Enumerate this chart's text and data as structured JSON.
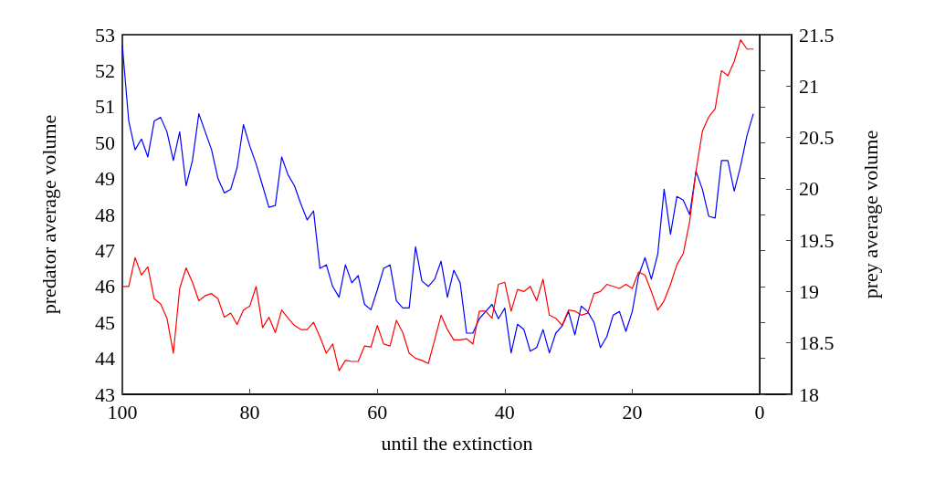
{
  "chart_data": {
    "type": "line",
    "xlabel": "until the extinction",
    "ylabel": "predator average volume",
    "y2label": "prey average volume",
    "x": [
      100,
      99,
      98,
      97,
      96,
      95,
      94,
      93,
      92,
      91,
      90,
      89,
      88,
      87,
      86,
      85,
      84,
      83,
      82,
      81,
      80,
      79,
      78,
      77,
      76,
      75,
      74,
      73,
      72,
      71,
      70,
      69,
      68,
      67,
      66,
      65,
      64,
      63,
      62,
      61,
      60,
      59,
      58,
      57,
      56,
      55,
      54,
      53,
      52,
      51,
      50,
      49,
      48,
      47,
      46,
      45,
      44,
      43,
      42,
      41,
      40,
      39,
      38,
      37,
      36,
      35,
      34,
      33,
      32,
      31,
      30,
      29,
      28,
      27,
      26,
      25,
      24,
      23,
      22,
      21,
      20,
      19,
      18,
      17,
      16,
      15,
      14,
      13,
      12,
      11,
      10,
      9,
      8,
      7,
      6,
      5,
      4,
      3,
      2,
      1
    ],
    "series": [
      {
        "color": "#0000ff",
        "values": [
          52.7,
          50.6,
          49.8,
          50.1,
          49.6,
          50.6,
          50.7,
          50.3,
          49.5,
          50.3,
          48.8,
          49.5,
          50.8,
          50.3,
          49.8,
          49.0,
          48.6,
          48.7,
          49.3,
          50.5,
          49.9,
          49.4,
          48.8,
          48.2,
          48.25,
          49.6,
          49.1,
          48.8,
          48.3,
          47.85,
          48.1,
          46.5,
          46.6,
          46.0,
          45.7,
          46.6,
          46.1,
          46.3,
          45.5,
          45.35,
          45.9,
          46.5,
          46.6,
          45.6,
          45.4,
          45.4,
          47.1,
          46.15,
          46.0,
          46.2,
          46.7,
          45.7,
          46.45,
          46.1,
          44.7,
          44.7,
          45.1,
          45.3,
          45.5,
          45.1,
          45.4,
          44.15,
          44.95,
          44.8,
          44.2,
          44.3,
          44.8,
          44.15,
          44.7,
          44.9,
          45.3,
          44.65,
          45.45,
          45.3,
          45.0,
          44.3,
          44.6,
          45.2,
          45.3,
          44.75,
          45.3,
          46.3,
          46.8,
          46.2,
          46.9,
          48.7,
          47.45,
          48.5,
          48.4,
          48.0,
          49.2,
          48.7,
          47.95,
          47.9,
          49.5,
          49.5,
          48.65,
          49.35,
          50.2,
          50.8
        ]
      },
      {
        "color": "#ff0000",
        "axis": "y2",
        "values": [
          19.05,
          19.05,
          19.33,
          19.16,
          19.24,
          18.93,
          18.88,
          18.74,
          18.4,
          19.03,
          19.23,
          19.09,
          18.91,
          18.96,
          18.98,
          18.93,
          18.75,
          18.79,
          18.68,
          18.82,
          18.86,
          19.05,
          18.65,
          18.75,
          18.6,
          18.82,
          18.74,
          18.67,
          18.63,
          18.63,
          18.7,
          18.56,
          18.4,
          18.49,
          18.23,
          18.33,
          18.32,
          18.32,
          18.47,
          18.46,
          18.67,
          18.49,
          18.47,
          18.72,
          18.6,
          18.4,
          18.35,
          18.33,
          18.3,
          18.53,
          18.77,
          18.63,
          18.53,
          18.53,
          18.54,
          18.49,
          18.81,
          18.81,
          18.74,
          19.07,
          19.09,
          18.81,
          19.02,
          19.0,
          19.05,
          18.91,
          19.12,
          18.77,
          18.74,
          18.67,
          18.82,
          18.81,
          18.77,
          18.79,
          18.98,
          19.0,
          19.07,
          19.05,
          19.03,
          19.07,
          19.03,
          19.19,
          19.16,
          19.0,
          18.82,
          18.91,
          19.07,
          19.26,
          19.37,
          19.68,
          20.17,
          20.56,
          20.7,
          20.78,
          21.15,
          21.1,
          21.24,
          21.45,
          21.36,
          21.36
        ]
      }
    ],
    "xlim": [
      100,
      -5
    ],
    "xticks": [
      100,
      80,
      60,
      40,
      20,
      0
    ],
    "ylim": [
      43,
      53
    ],
    "yticks": [
      43,
      44,
      45,
      46,
      47,
      48,
      49,
      50,
      51,
      52,
      53
    ],
    "y2lim": [
      18,
      21.5
    ],
    "y2ticks": [
      18,
      18.5,
      19,
      19.5,
      20,
      20.5,
      21,
      21.5
    ],
    "ref_lines": [
      {
        "axis": "x",
        "value": 0,
        "color": "#000000"
      }
    ],
    "grid": false,
    "marker": "none",
    "line_style": "solid"
  }
}
